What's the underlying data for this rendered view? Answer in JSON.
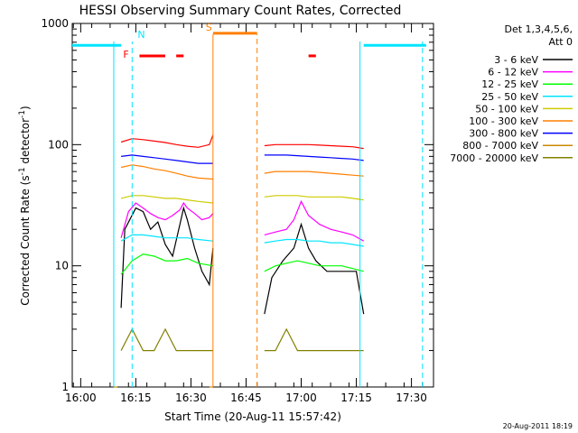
{
  "chart_data": {
    "type": "line",
    "title": "HESSI Observing Summary Count Rates, Corrected",
    "xlabel": "Start Time (20-Aug-11 15:57:42)",
    "ylabel_main": "Corrected Count Rate (s",
    "ylabel_sup1": "-1",
    "ylabel_mid": " detector",
    "ylabel_sup2": "-1",
    "ylabel_end": ")",
    "yscale": "log",
    "ylim": [
      1,
      1000
    ],
    "xlim": [
      "15:57:42",
      "17:36:00"
    ],
    "x_ticks": [
      "16:00",
      "16:15",
      "16:30",
      "16:45",
      "17:00",
      "17:15",
      "17:30"
    ],
    "y_ticks": [
      "1",
      "10",
      "100",
      "1000"
    ],
    "legend_header": [
      "Det 1,3,4,5,6,",
      "Att 0"
    ],
    "legend_placement": "right",
    "timestamp": "20-Aug-2011 18:19",
    "flags": [
      {
        "label": "N",
        "color": "#00e5ff"
      },
      {
        "label": "F",
        "color": "#ff0000"
      },
      {
        "label": "S",
        "color": "#ff7f00"
      }
    ],
    "series": [
      {
        "name": "3 - 6 keV",
        "color": "#000000",
        "segments": [
          [
            [
              "16:11",
              4.5
            ],
            [
              "16:12",
              20
            ],
            [
              "16:15",
              30
            ],
            [
              "16:17",
              28
            ],
            [
              "16:19",
              20
            ],
            [
              "16:21",
              23
            ],
            [
              "16:23",
              15
            ],
            [
              "16:25",
              12
            ],
            [
              "16:27",
              22
            ],
            [
              "16:28",
              30
            ],
            [
              "16:29",
              24
            ],
            [
              "16:31",
              14
            ],
            [
              "16:33",
              9
            ],
            [
              "16:35",
              7
            ],
            [
              "16:36",
              14
            ]
          ],
          [
            [
              "16:50",
              4
            ],
            [
              "16:52",
              8
            ],
            [
              "16:55",
              11
            ],
            [
              "16:58",
              14
            ],
            [
              "17:00",
              22
            ],
            [
              "17:02",
              14
            ],
            [
              "17:04",
              11
            ],
            [
              "17:07",
              9
            ],
            [
              "17:10",
              9
            ],
            [
              "17:13",
              9
            ],
            [
              "17:15",
              9
            ],
            [
              "17:17",
              4
            ]
          ]
        ]
      },
      {
        "name": "6 - 12 keV",
        "color": "#ff00ff",
        "segments": [
          [
            [
              "16:11",
              17
            ],
            [
              "16:13",
              28
            ],
            [
              "16:15",
              33
            ],
            [
              "16:17",
              30
            ],
            [
              "16:19",
              27
            ],
            [
              "16:21",
              25
            ],
            [
              "16:23",
              24
            ],
            [
              "16:25",
              26
            ],
            [
              "16:27",
              29
            ],
            [
              "16:28",
              33
            ],
            [
              "16:29",
              30
            ],
            [
              "16:31",
              27
            ],
            [
              "16:33",
              24
            ],
            [
              "16:35",
              25
            ],
            [
              "16:36",
              27
            ]
          ],
          [
            [
              "16:50",
              18
            ],
            [
              "16:53",
              19
            ],
            [
              "16:56",
              20
            ],
            [
              "16:58",
              24
            ],
            [
              "17:00",
              34
            ],
            [
              "17:02",
              26
            ],
            [
              "17:05",
              22
            ],
            [
              "17:08",
              20
            ],
            [
              "17:11",
              19
            ],
            [
              "17:14",
              18
            ],
            [
              "17:17",
              16
            ]
          ]
        ]
      },
      {
        "name": "12 - 25 keV",
        "color": "#00ff00",
        "segments": [
          [
            [
              "16:11",
              8.5
            ],
            [
              "16:14",
              11
            ],
            [
              "16:17",
              12.5
            ],
            [
              "16:20",
              12
            ],
            [
              "16:23",
              11
            ],
            [
              "16:26",
              11
            ],
            [
              "16:29",
              11.5
            ],
            [
              "16:32",
              10.5
            ],
            [
              "16:36",
              10
            ]
          ],
          [
            [
              "16:50",
              9
            ],
            [
              "16:53",
              10
            ],
            [
              "16:56",
              10.5
            ],
            [
              "16:59",
              11
            ],
            [
              "17:02",
              10.5
            ],
            [
              "17:05",
              10
            ],
            [
              "17:08",
              10
            ],
            [
              "17:11",
              10
            ],
            [
              "17:14",
              9.5
            ],
            [
              "17:17",
              9
            ]
          ]
        ]
      },
      {
        "name": "25 - 50 keV",
        "color": "#00e5ff",
        "segments": [
          [
            [
              "16:11",
              16
            ],
            [
              "16:14",
              18
            ],
            [
              "16:17",
              18
            ],
            [
              "16:20",
              17.5
            ],
            [
              "16:23",
              17
            ],
            [
              "16:26",
              17
            ],
            [
              "16:29",
              17
            ],
            [
              "16:32",
              16.5
            ],
            [
              "16:36",
              16
            ]
          ],
          [
            [
              "16:50",
              15.5
            ],
            [
              "16:53",
              16
            ],
            [
              "16:56",
              16.5
            ],
            [
              "16:59",
              16.5
            ],
            [
              "17:02",
              16
            ],
            [
              "17:05",
              16
            ],
            [
              "17:08",
              15.5
            ],
            [
              "17:11",
              15.5
            ],
            [
              "17:14",
              15
            ],
            [
              "17:17",
              14.5
            ]
          ]
        ]
      },
      {
        "name": "50 - 100 keV",
        "color": "#cccc00",
        "segments": [
          [
            [
              "16:11",
              36
            ],
            [
              "16:14",
              38
            ],
            [
              "16:17",
              38
            ],
            [
              "16:20",
              37
            ],
            [
              "16:23",
              36
            ],
            [
              "16:26",
              36
            ],
            [
              "16:29",
              35
            ],
            [
              "16:32",
              34
            ],
            [
              "16:36",
              33
            ]
          ],
          [
            [
              "16:50",
              37
            ],
            [
              "16:53",
              38
            ],
            [
              "16:56",
              38
            ],
            [
              "16:59",
              38
            ],
            [
              "17:02",
              37
            ],
            [
              "17:05",
              37
            ],
            [
              "17:08",
              37
            ],
            [
              "17:11",
              37
            ],
            [
              "17:14",
              36
            ],
            [
              "17:17",
              35
            ]
          ]
        ]
      },
      {
        "name": "100 - 300 keV",
        "color": "#ff7f00",
        "segments": [
          [
            [
              "16:11",
              65
            ],
            [
              "16:14",
              68
            ],
            [
              "16:17",
              66
            ],
            [
              "16:20",
              63
            ],
            [
              "16:23",
              61
            ],
            [
              "16:26",
              58
            ],
            [
              "16:29",
              55
            ],
            [
              "16:32",
              53
            ],
            [
              "16:36",
              52
            ]
          ],
          [
            [
              "16:50",
              58
            ],
            [
              "16:53",
              60
            ],
            [
              "16:56",
              60
            ],
            [
              "16:59",
              60
            ],
            [
              "17:02",
              60
            ],
            [
              "17:05",
              59
            ],
            [
              "17:08",
              58
            ],
            [
              "17:11",
              57
            ],
            [
              "17:14",
              56
            ],
            [
              "17:17",
              55
            ]
          ]
        ]
      },
      {
        "name": "300 - 800 keV",
        "color": "#0000ff",
        "segments": [
          [
            [
              "16:11",
              80
            ],
            [
              "16:14",
              82
            ],
            [
              "16:17",
              80
            ],
            [
              "16:20",
              78
            ],
            [
              "16:23",
              76
            ],
            [
              "16:26",
              74
            ],
            [
              "16:29",
              72
            ],
            [
              "16:32",
              70
            ],
            [
              "16:36",
              70
            ]
          ],
          [
            [
              "16:50",
              82
            ],
            [
              "16:53",
              82
            ],
            [
              "16:56",
              82
            ],
            [
              "16:59",
              81
            ],
            [
              "17:02",
              80
            ],
            [
              "17:05",
              79
            ],
            [
              "17:08",
              78
            ],
            [
              "17:11",
              77
            ],
            [
              "17:14",
              76
            ],
            [
              "17:17",
              74
            ]
          ]
        ]
      },
      {
        "name": "800 - 7000 keV",
        "color": "#cc8800",
        "segments": [
          [
            [
              "16:09",
              1
            ],
            [
              "16:10",
              1
            ]
          ],
          [
            [
              "16:35",
              1
            ],
            [
              "16:36",
              1
            ]
          ]
        ]
      },
      {
        "name": "7000 - 20000 keV",
        "color": "#808000",
        "segments": [
          [
            [
              "16:11",
              2
            ],
            [
              "16:14",
              3
            ],
            [
              "16:17",
              2
            ],
            [
              "16:20",
              2
            ],
            [
              "16:23",
              3
            ],
            [
              "16:26",
              2
            ],
            [
              "16:29",
              2
            ],
            [
              "16:32",
              2
            ],
            [
              "16:36",
              2
            ]
          ],
          [
            [
              "16:50",
              2
            ],
            [
              "16:53",
              2
            ],
            [
              "16:56",
              3
            ],
            [
              "16:59",
              2
            ],
            [
              "17:02",
              2
            ],
            [
              "17:05",
              2
            ],
            [
              "17:08",
              2
            ],
            [
              "17:11",
              2
            ],
            [
              "17:14",
              2
            ],
            [
              "17:17",
              2
            ]
          ]
        ]
      }
    ],
    "top_series": {
      "name": "red_top",
      "color": "#ff0000",
      "segments": [
        [
          [
            "16:11",
            105
          ],
          [
            "16:14",
            112
          ],
          [
            "16:17",
            110
          ],
          [
            "16:20",
            107
          ],
          [
            "16:23",
            104
          ],
          [
            "16:26",
            100
          ],
          [
            "16:29",
            97
          ],
          [
            "16:32",
            95
          ],
          [
            "16:35",
            100
          ],
          [
            "16:36",
            120
          ]
        ],
        [
          [
            "16:50",
            98
          ],
          [
            "16:53",
            100
          ],
          [
            "16:56",
            100
          ],
          [
            "16:59",
            100
          ],
          [
            "17:02",
            100
          ],
          [
            "17:05",
            99
          ],
          [
            "17:08",
            98
          ],
          [
            "17:11",
            97
          ],
          [
            "17:14",
            96
          ],
          [
            "17:17",
            93
          ]
        ]
      ]
    }
  }
}
